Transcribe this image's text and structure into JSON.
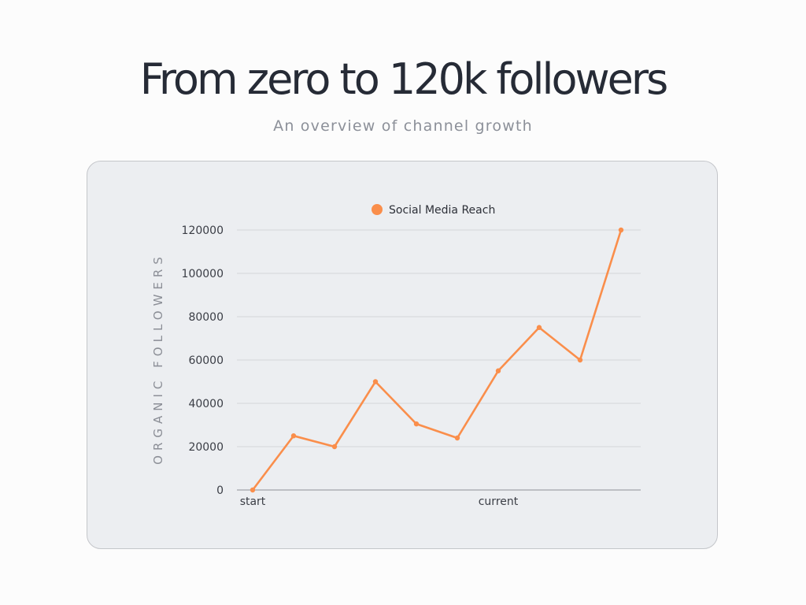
{
  "page": {
    "title": "From zero to 120k followers",
    "subtitle": "An overview of channel growth"
  },
  "chart_data": {
    "type": "line",
    "title": "",
    "xlabel": "",
    "ylabel": "ORGANIC FOLLOWERS",
    "ylim": [
      0,
      120000
    ],
    "y_ticks": [
      0,
      20000,
      40000,
      60000,
      80000,
      100000,
      120000
    ],
    "x_tick_labels": [
      {
        "index": 0,
        "label": "start"
      },
      {
        "index": 6,
        "label": "current"
      }
    ],
    "grid": true,
    "legend_position": "top-center",
    "series": [
      {
        "name": "Social Media Reach",
        "color": "#fa8e4b",
        "values": [
          0,
          25000,
          20000,
          50000,
          30500,
          24000,
          55000,
          75000,
          60000,
          120000
        ]
      }
    ]
  }
}
